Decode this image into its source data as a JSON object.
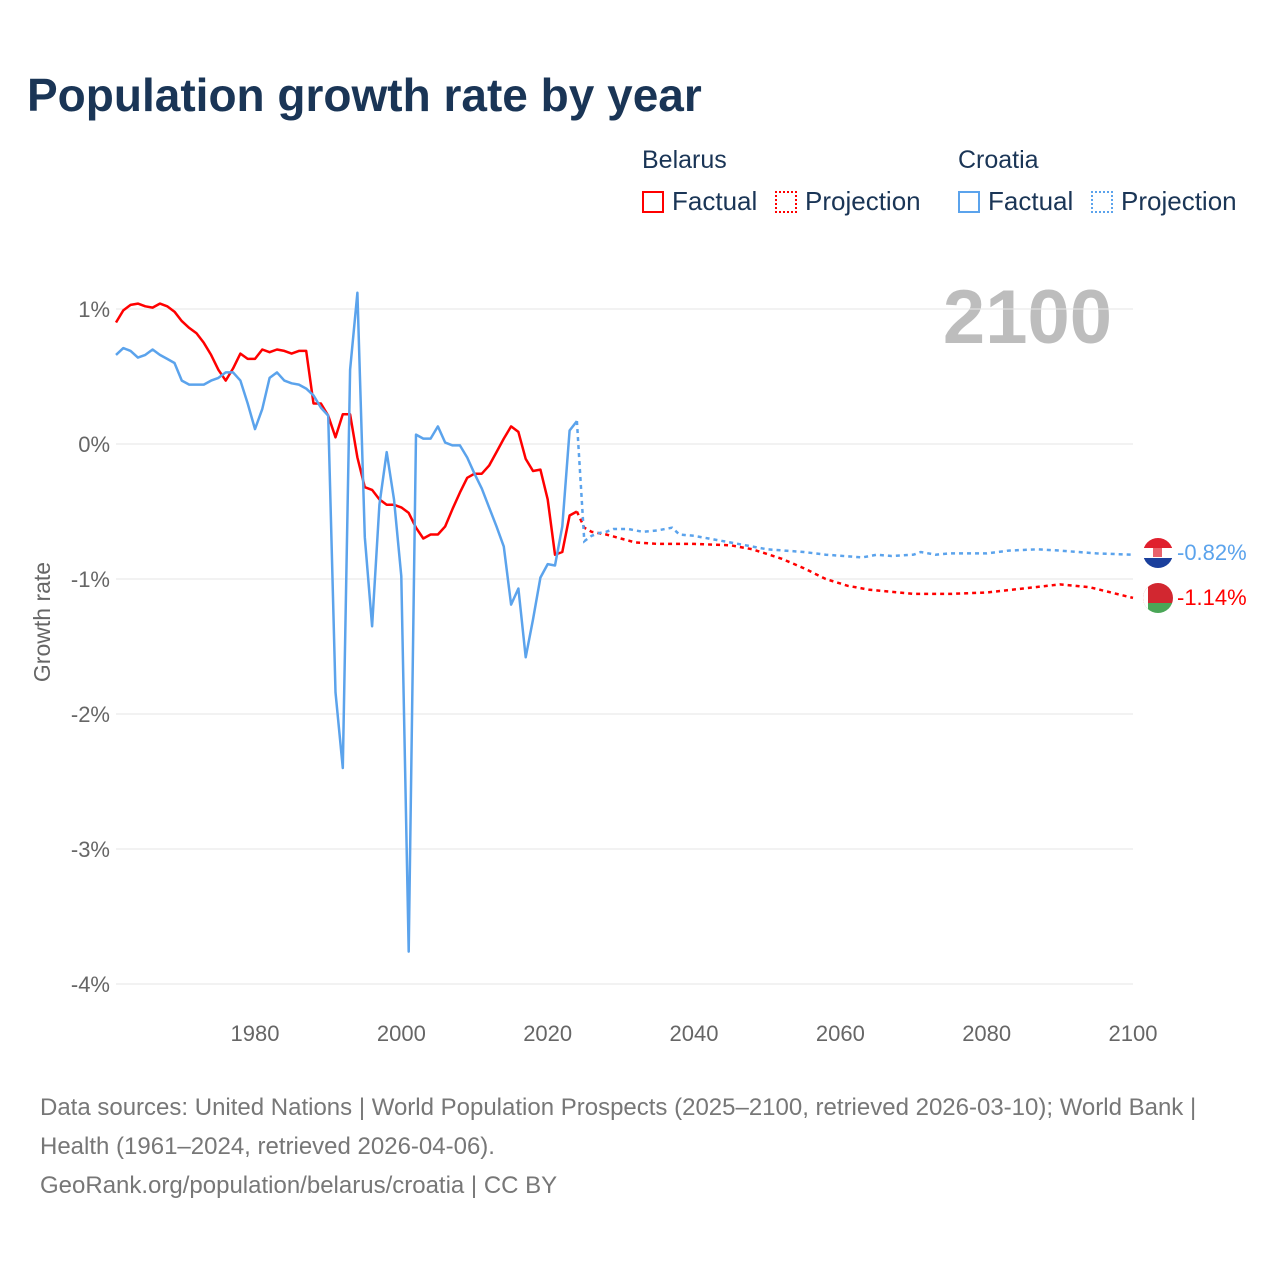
{
  "title": "Population growth rate by year",
  "legend": {
    "groups": [
      {
        "name": "Belarus",
        "color": "#ff0000",
        "factual": "Factual",
        "projection": "Projection"
      },
      {
        "name": "Croatia",
        "color": "#5ba3ec",
        "factual": "Factual",
        "projection": "Projection"
      }
    ]
  },
  "year_watermark": "2100",
  "footer": {
    "sources": "Data sources: United Nations | World Population Prospects (2025–2100, retrieved 2026-03-10); World Bank | Health (1961–2024, retrieved 2026-04-06).",
    "credit": "GeoRank.org/population/belarus/croatia | CC BY"
  },
  "chart_data": {
    "type": "line",
    "title": "Population growth rate by year",
    "xlabel": "",
    "ylabel": "Growth rate",
    "xlim": [
      1961,
      2100
    ],
    "ylim": [
      -4.2,
      1.3
    ],
    "x_ticks": [
      1980,
      2000,
      2020,
      2040,
      2060,
      2080,
      2100
    ],
    "x_tick_labels": [
      "1980",
      "2000",
      "2020",
      "2040",
      "2060",
      "2080",
      "2100"
    ],
    "y_ticks": [
      1,
      0,
      -1,
      -2,
      -3,
      -4
    ],
    "y_tick_labels": [
      "1%",
      "0%",
      "-1%",
      "-2%",
      "-3%",
      "-4%"
    ],
    "grid": true,
    "legend_position": "top-right",
    "series": [
      {
        "name": "Belarus",
        "color": "#ff0000",
        "end_label": "-1.14%",
        "factual_start": 1961,
        "factual": [
          0.9,
          0.99,
          1.03,
          1.04,
          1.02,
          1.01,
          1.04,
          1.02,
          0.98,
          0.91,
          0.86,
          0.82,
          0.75,
          0.66,
          0.55,
          0.47,
          0.56,
          0.67,
          0.63,
          0.63,
          0.7,
          0.68,
          0.7,
          0.69,
          0.67,
          0.69,
          0.69,
          0.3,
          0.3,
          0.21,
          0.05,
          0.22,
          0.22,
          -0.1,
          -0.32,
          -0.34,
          -0.41,
          -0.45,
          -0.45,
          -0.47,
          -0.51,
          -0.62,
          -0.7,
          -0.67,
          -0.67,
          -0.61,
          -0.48,
          -0.36,
          -0.25,
          -0.22,
          -0.22,
          -0.16,
          -0.06,
          0.04,
          0.13,
          0.09,
          -0.11,
          -0.2,
          -0.19,
          -0.41,
          -0.82,
          -0.8,
          -0.53,
          -0.5
        ],
        "projection": [
          [
            2024,
            -0.5
          ],
          [
            2025,
            -0.62
          ],
          [
            2026,
            -0.65
          ],
          [
            2028,
            -0.67
          ],
          [
            2030,
            -0.7
          ],
          [
            2032,
            -0.73
          ],
          [
            2035,
            -0.74
          ],
          [
            2040,
            -0.74
          ],
          [
            2045,
            -0.75
          ],
          [
            2048,
            -0.78
          ],
          [
            2052,
            -0.85
          ],
          [
            2055,
            -0.92
          ],
          [
            2058,
            -1.0
          ],
          [
            2061,
            -1.05
          ],
          [
            2064,
            -1.08
          ],
          [
            2068,
            -1.1
          ],
          [
            2070,
            -1.11
          ],
          [
            2075,
            -1.11
          ],
          [
            2080,
            -1.1
          ],
          [
            2085,
            -1.07
          ],
          [
            2090,
            -1.04
          ],
          [
            2094,
            -1.06
          ],
          [
            2100,
            -1.14
          ]
        ]
      },
      {
        "name": "Croatia",
        "color": "#5ba3ec",
        "end_label": "-0.82%",
        "factual_start": 1961,
        "factual": [
          0.66,
          0.71,
          0.69,
          0.64,
          0.66,
          0.7,
          0.66,
          0.63,
          0.6,
          0.47,
          0.44,
          0.44,
          0.44,
          0.47,
          0.49,
          0.53,
          0.53,
          0.47,
          0.3,
          0.11,
          0.26,
          0.49,
          0.53,
          0.47,
          0.45,
          0.44,
          0.41,
          0.36,
          0.27,
          0.21,
          -1.84,
          -2.4,
          0.55,
          1.12,
          -0.69,
          -1.35,
          -0.45,
          -0.06,
          -0.41,
          -0.98,
          -3.76,
          0.07,
          0.04,
          0.04,
          0.13,
          0.01,
          -0.01,
          -0.01,
          -0.1,
          -0.22,
          -0.33,
          -0.47,
          -0.61,
          -0.76,
          -1.19,
          -1.07,
          -1.58,
          -1.3,
          -0.99,
          -0.89,
          -0.9,
          -0.61,
          0.1,
          0.17
        ],
        "projection": [
          [
            2024,
            0.17
          ],
          [
            2025,
            -0.72
          ],
          [
            2026,
            -0.68
          ],
          [
            2027,
            -0.66
          ],
          [
            2028,
            -0.65
          ],
          [
            2029,
            -0.63
          ],
          [
            2031,
            -0.63
          ],
          [
            2032,
            -0.64
          ],
          [
            2033,
            -0.65
          ],
          [
            2035,
            -0.64
          ],
          [
            2037,
            -0.62
          ],
          [
            2038,
            -0.67
          ],
          [
            2040,
            -0.68
          ],
          [
            2042,
            -0.7
          ],
          [
            2045,
            -0.73
          ],
          [
            2048,
            -0.76
          ],
          [
            2050,
            -0.78
          ],
          [
            2055,
            -0.8
          ],
          [
            2058,
            -0.82
          ],
          [
            2063,
            -0.84
          ],
          [
            2065,
            -0.82
          ],
          [
            2067,
            -0.83
          ],
          [
            2070,
            -0.82
          ],
          [
            2071,
            -0.8
          ],
          [
            2073,
            -0.82
          ],
          [
            2075,
            -0.81
          ],
          [
            2080,
            -0.81
          ],
          [
            2083,
            -0.79
          ],
          [
            2087,
            -0.78
          ],
          [
            2090,
            -0.79
          ],
          [
            2095,
            -0.81
          ],
          [
            2100,
            -0.82
          ]
        ]
      }
    ]
  }
}
